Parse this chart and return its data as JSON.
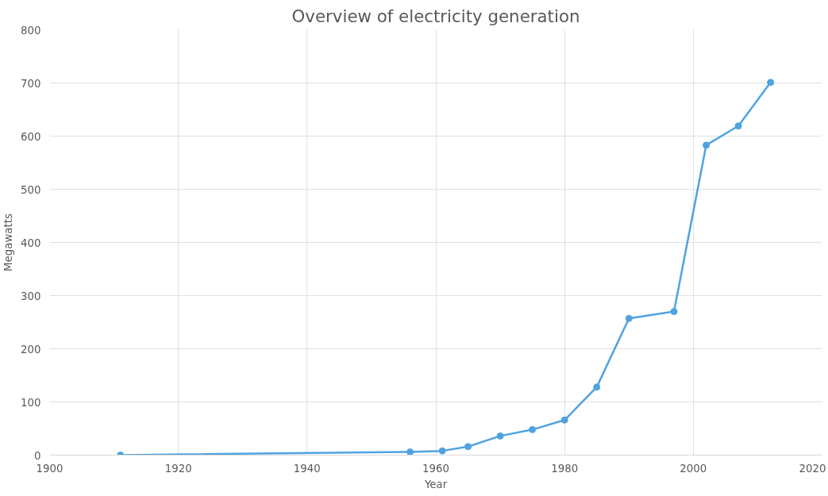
{
  "chart_data": {
    "type": "line",
    "title": "Overview of electricity generation",
    "xlabel": "Year",
    "ylabel": "Megawatts",
    "x": [
      1911,
      1956,
      1961,
      1965,
      1970,
      1975,
      1980,
      1985,
      1990,
      1997,
      2002,
      2007,
      2012
    ],
    "series": [
      {
        "color": "#4fa3e0",
        "values": [
          0,
          6,
          8,
          16,
          36,
          48,
          66,
          128,
          257,
          270,
          583,
          619,
          701
        ]
      }
    ],
    "xlim": [
      1900,
      2020
    ],
    "xticks": [
      1900,
      1920,
      1940,
      1960,
      1980,
      2000,
      2020
    ],
    "ylim": [
      0,
      800
    ],
    "yticks": [
      0,
      100,
      200,
      300,
      400,
      500,
      600,
      700,
      800
    ],
    "grid": true,
    "marker": "circle",
    "line_style": "solid"
  }
}
